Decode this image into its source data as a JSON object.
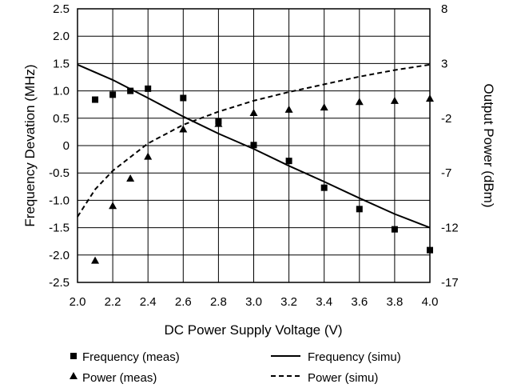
{
  "chart_data": {
    "type": "scatter",
    "xlabel": "DC Power Supply Voltage (V)",
    "ylabel": "Frequency Devation (MHz)",
    "y2label": "Output Power (dBm)",
    "xlim": [
      2.0,
      4.0
    ],
    "ylim": [
      -2.5,
      2.5
    ],
    "y2lim": [
      -17,
      8
    ],
    "xticks": [
      "2.0",
      "2.2",
      "2.4",
      "2.6",
      "2.8",
      "3.0",
      "3.2",
      "3.4",
      "3.6",
      "3.8",
      "4.0"
    ],
    "yticks": [
      "2.5",
      "2.0",
      "1.5",
      "1.0",
      "0.5",
      "0",
      "-0.5",
      "-1.0",
      "-1.5",
      "-2.0",
      "-2.5"
    ],
    "y2ticks": [
      "8",
      "3",
      "-2",
      "-7",
      "-12",
      "-17"
    ],
    "grid": true,
    "legend_position": "bottom",
    "series": [
      {
        "name": "Frequency (meas)",
        "axis": "left",
        "style": "square-marker",
        "x": [
          2.1,
          2.2,
          2.3,
          2.4,
          2.6,
          2.8,
          3.0,
          3.2,
          3.4,
          3.6,
          3.8,
          4.0
        ],
        "y": [
          0.84,
          0.93,
          1.0,
          1.04,
          0.87,
          0.44,
          0.01,
          -0.28,
          -0.77,
          -1.16,
          -1.53,
          -1.91
        ]
      },
      {
        "name": "Power (meas)",
        "axis": "right",
        "style": "triangle-marker",
        "x": [
          2.1,
          2.2,
          2.3,
          2.4,
          2.6,
          2.8,
          3.0,
          3.2,
          3.4,
          3.6,
          3.8,
          4.0
        ],
        "y": [
          -15.0,
          -10.0,
          -7.5,
          -5.5,
          -3.0,
          -2.5,
          -1.5,
          -1.2,
          -1.0,
          -0.5,
          -0.4,
          -0.2
        ]
      },
      {
        "name": "Frequency (simu)",
        "axis": "left",
        "style": "solid-line",
        "x": [
          2.0,
          2.2,
          2.4,
          2.6,
          2.8,
          3.0,
          3.2,
          3.4,
          3.6,
          3.8,
          4.0
        ],
        "y": [
          1.48,
          1.2,
          0.87,
          0.53,
          0.22,
          -0.06,
          -0.37,
          -0.66,
          -0.96,
          -1.25,
          -1.5
        ]
      },
      {
        "name": "Power (simu)",
        "axis": "right",
        "style": "dashed-line",
        "x": [
          2.0,
          2.1,
          2.2,
          2.4,
          2.6,
          2.8,
          3.0,
          3.2,
          3.4,
          3.6,
          3.8,
          4.0
        ],
        "y": [
          -11.0,
          -8.5,
          -6.8,
          -4.3,
          -2.6,
          -1.4,
          -0.4,
          0.4,
          1.1,
          1.8,
          2.4,
          2.9
        ]
      }
    ],
    "legend": [
      {
        "name": "Frequency (meas)",
        "symbol": "square"
      },
      {
        "name": "Frequency (simu)",
        "symbol": "solid-line"
      },
      {
        "name": "Power (meas)",
        "symbol": "triangle"
      },
      {
        "name": "Power (simu)",
        "symbol": "dashed-line"
      }
    ]
  }
}
